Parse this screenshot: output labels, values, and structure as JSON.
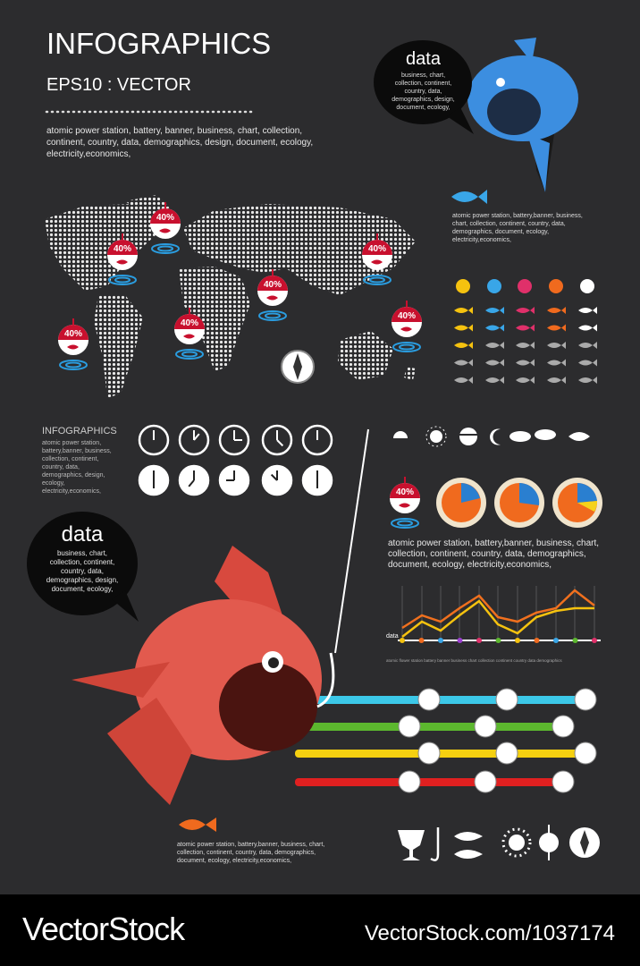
{
  "header": {
    "title": "INFOGRAPHICS",
    "subtitle": "EPS10 : VECTOR",
    "description": "atomic power station, battery, banner, business, chart, collection, continent, country, data, demographics, design, document, ecology, electricity,economics,"
  },
  "bubble_top": {
    "title": "data",
    "text": "business, chart, collection, continent, country, data, demographics, design, document, ecology,"
  },
  "fish_caption": "atomic power station, battery,banner, business, chart, collection, continent, country, data, demographics, document, ecology, electricity,economics,",
  "map_markers": [
    "40%",
    "40%",
    "40%",
    "40%",
    "40%",
    "40%",
    "40%"
  ],
  "side_block": {
    "title": "INFOGRAPHICS",
    "text": "atomic power station, battery,banner, business, collection, continent, country, data, demographics, design, ecology, electricity,economics,"
  },
  "chart_marker": "40%",
  "chart_caption": "atomic power station, battery,banner, business, chart, collection, continent, country, data, demographics, document, ecology, electricity,economics,",
  "line_chart": {
    "label": "data",
    "axis_text": "atomic flower station battery banner business chart collection continent country data demographics"
  },
  "bubble_bottom": {
    "title": "data",
    "text": "business, chart, collection, continent, country, data, demographics, design, document, ecology,"
  },
  "bottom_caption": "atomic power station, battery,banner, business, chart, collection, continent, country, data, demographics, document, ecology, electricity,economics,",
  "footer": {
    "brand": "VectorStock",
    "url": "VectorStock.com/1037174"
  }
}
